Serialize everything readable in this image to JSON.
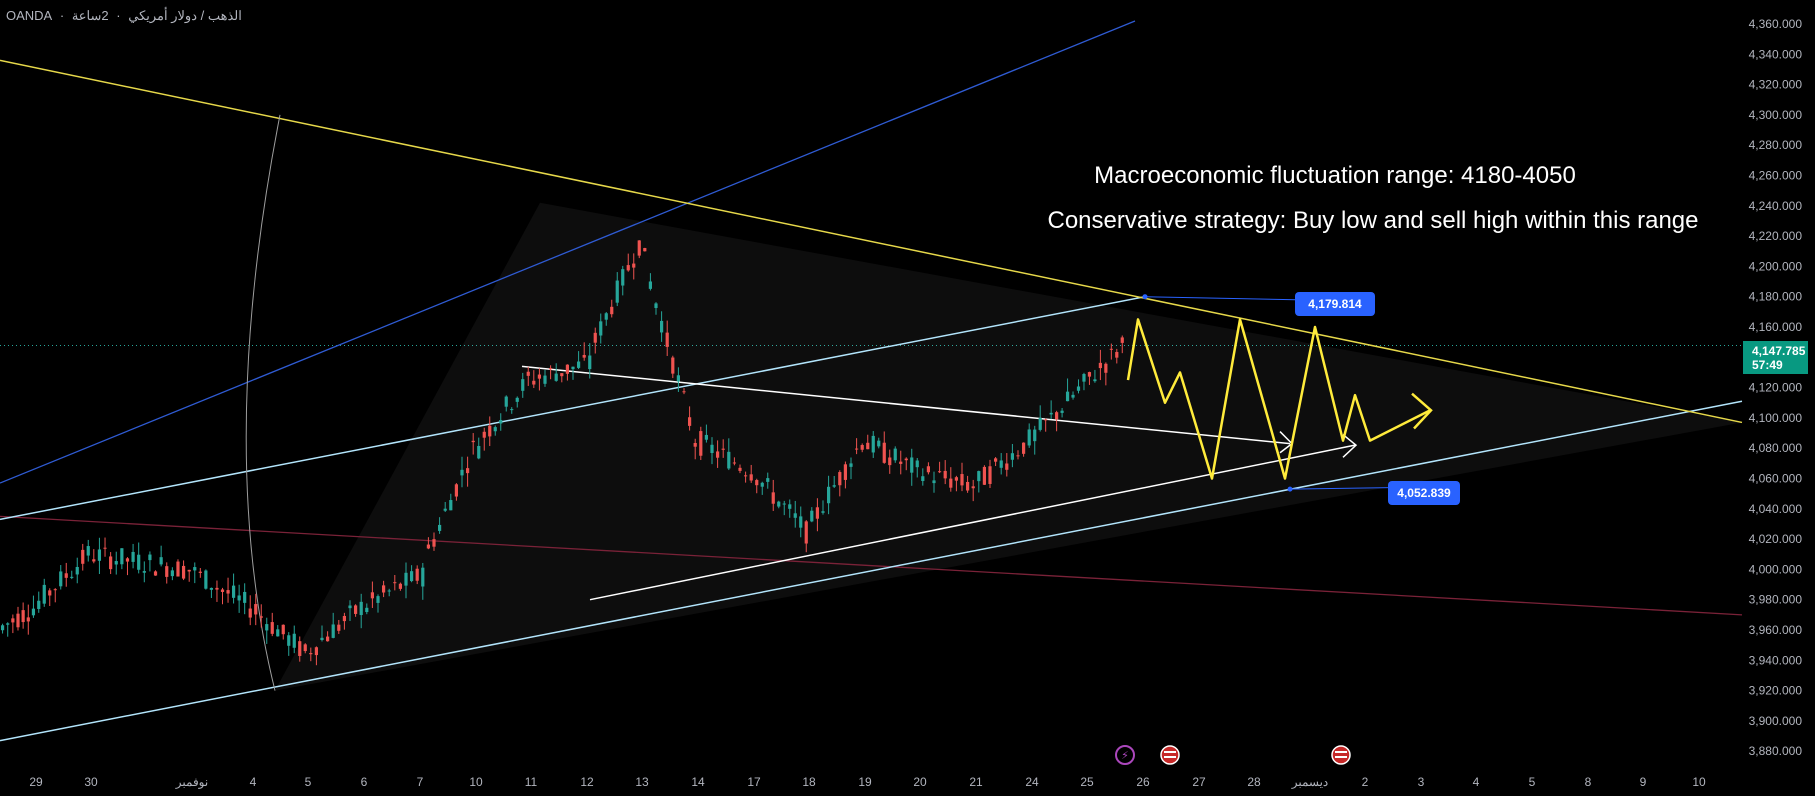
{
  "header": {
    "broker": "OANDA",
    "separator": "·",
    "timeframe": "2ساعة",
    "separator2": "·",
    "symbol_name": "الذهب / دولار أمريكي"
  },
  "annotations": {
    "line1": "Macroeconomic fluctuation range: 4180-4050",
    "line2": "Conservative strategy: Buy low and sell high within this range"
  },
  "price_badges": {
    "upper": "4,179.814",
    "lower": "4,052.839",
    "current_price": "4,147.785",
    "countdown": "57:49"
  },
  "colors": {
    "background": "#000000",
    "up": "#26a69a",
    "down": "#ef5350",
    "resistance": "#e6d84a",
    "blue_line": "#2f5bd3",
    "channel": "#b3e5fc",
    "red_trend": "#7a2238",
    "projection": "#ffeb3b",
    "badge": "#2962ff",
    "current_badge": "#089981"
  },
  "chart_data": {
    "type": "candlestick",
    "symbol": "OANDA · 2ساعة · الذهب / دولار أمريكي",
    "y_axis": {
      "ticks": [
        "4,360.000",
        "4,340.000",
        "4,320.000",
        "4,300.000",
        "4,280.000",
        "4,260.000",
        "4,240.000",
        "4,220.000",
        "4,200.000",
        "4,180.000",
        "4,160.000",
        "4,140.000",
        "4,120.000",
        "4,100.000",
        "4,080.000",
        "4,060.000",
        "4,040.000",
        "4,020.000",
        "4,000.000",
        "3,980.000",
        "3,960.000",
        "3,940.000",
        "3,920.000",
        "3,900.000",
        "3,880.000"
      ],
      "ylim": [
        3875,
        4372
      ]
    },
    "x_axis": {
      "ticks": [
        "29",
        "30",
        "نوفمبر",
        "4",
        "5",
        "6",
        "7",
        "10",
        "11",
        "12",
        "13",
        "14",
        "17",
        "18",
        "19",
        "20",
        "21",
        "24",
        "25",
        "26",
        "27",
        "28",
        "ديسمبر",
        "2",
        "3",
        "4",
        "5",
        "8",
        "9",
        "10"
      ]
    },
    "close_series": [
      {
        "d": "29",
        "c": 3975
      },
      {
        "d": "30",
        "c": 4010
      },
      {
        "d": "نوفمبر",
        "c": 4000
      },
      {
        "d": "4",
        "c": 3975
      },
      {
        "d": "5",
        "c": 3945
      },
      {
        "d": "6",
        "c": 3975
      },
      {
        "d": "7",
        "c": 3995
      },
      {
        "d": "10",
        "c": 4080
      },
      {
        "d": "11",
        "c": 4125
      },
      {
        "d": "12",
        "c": 4135
      },
      {
        "d": "13",
        "c": 4215
      },
      {
        "d": "14",
        "c": 4085
      },
      {
        "d": "17",
        "c": 4065
      },
      {
        "d": "18",
        "c": 4025
      },
      {
        "d": "19",
        "c": 4085
      },
      {
        "d": "20",
        "c": 4065
      },
      {
        "d": "21",
        "c": 4055
      },
      {
        "d": "24",
        "c": 4085
      },
      {
        "d": "25",
        "c": 4147.785
      }
    ],
    "levels": {
      "upper_touch": 4179.814,
      "lower_touch": 4052.839,
      "range_high": 4180,
      "range_low": 4050
    },
    "projection_path": [
      4125,
      4165,
      4110,
      4130,
      4060,
      4165,
      4060,
      4160,
      4085,
      4115,
      4085,
      4105
    ]
  }
}
